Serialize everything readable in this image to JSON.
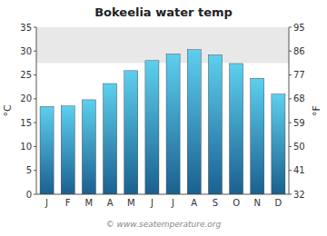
{
  "chart_data": {
    "type": "bar",
    "title": "Bokeelia water temp",
    "categories": [
      "J",
      "F",
      "M",
      "A",
      "M",
      "J",
      "J",
      "A",
      "S",
      "O",
      "N",
      "D"
    ],
    "values": [
      18.4,
      18.5,
      19.8,
      23.2,
      25.9,
      28.0,
      29.4,
      30.3,
      29.2,
      27.4,
      24.3,
      21.0
    ],
    "gradient": [
      "#1a6090",
      "#5dcfee"
    ],
    "ylabel": "°C",
    "y2label": "°F",
    "ylim": [
      0,
      35
    ],
    "yticks": [
      0,
      5,
      10,
      15,
      20,
      25,
      30,
      35
    ],
    "y2lim": [
      32,
      95
    ],
    "y2ticks": [
      32,
      41,
      50,
      59,
      68,
      77,
      86,
      95
    ],
    "highlight_band": {
      "ymin": 27.5,
      "ymax": 35,
      "color": "#e8e8e8"
    },
    "annotation": "© www.seatemperature.org",
    "grid": false
  }
}
